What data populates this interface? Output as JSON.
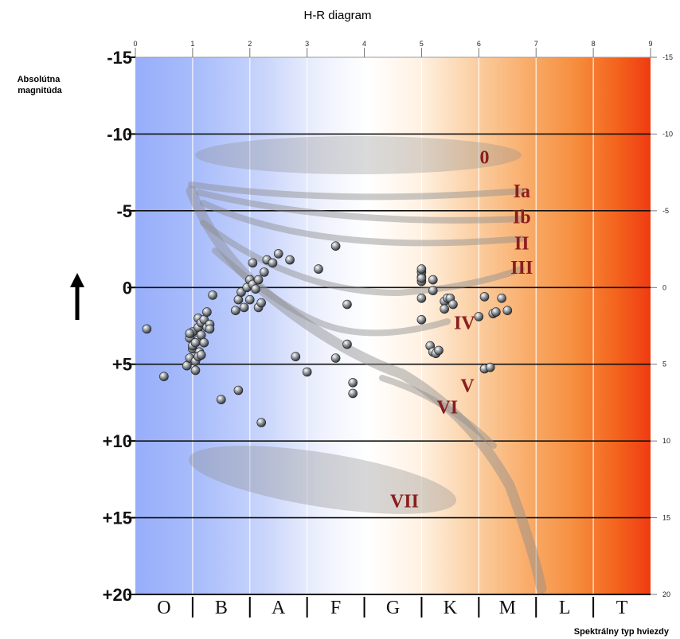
{
  "chart_data": {
    "type": "scatter",
    "title": "H-R diagram",
    "ylabel": [
      "Absolútna",
      "magnitúda"
    ],
    "xlabel": "Spektrálny typ hviezdy",
    "x_top_ticks": [
      "0",
      "1",
      "2",
      "3",
      "4",
      "5",
      "6",
      "7",
      "8",
      "9"
    ],
    "y_left_ticks": [
      {
        "v": -15,
        "label": "-15"
      },
      {
        "v": -10,
        "label": "-10"
      },
      {
        "v": -5,
        "label": "-5"
      },
      {
        "v": 0,
        "label": "0"
      },
      {
        "v": 5,
        "label": "+5"
      },
      {
        "v": 10,
        "label": "+10"
      },
      {
        "v": 15,
        "label": "+15"
      },
      {
        "v": 20,
        "label": "+20"
      }
    ],
    "y_right_ticks": [
      {
        "v": -15,
        "label": "-15"
      },
      {
        "v": -10,
        "label": "-10"
      },
      {
        "v": -5,
        "label": "-5"
      },
      {
        "v": 0,
        "label": "0"
      },
      {
        "v": 5,
        "label": "5"
      },
      {
        "v": 10,
        "label": "10"
      },
      {
        "v": 15,
        "label": "15"
      },
      {
        "v": 20,
        "label": "20"
      }
    ],
    "xlim": [
      0,
      9
    ],
    "ylim": [
      -15,
      20
    ],
    "spectral_classes": [
      "O",
      "B",
      "A",
      "F",
      "G",
      "K",
      "M",
      "L",
      "T"
    ],
    "luminosity_classes": [
      {
        "label": "0",
        "x": 6.1,
        "y": -8.5
      },
      {
        "label": "Ia",
        "x": 6.75,
        "y": -6.3
      },
      {
        "label": "Ib",
        "x": 6.75,
        "y": -4.6
      },
      {
        "label": "II",
        "x": 6.75,
        "y": -2.9
      },
      {
        "label": "III",
        "x": 6.75,
        "y": -1.3
      },
      {
        "label": "IV",
        "x": 5.75,
        "y": 2.3
      },
      {
        "label": "V",
        "x": 5.8,
        "y": 6.4
      },
      {
        "label": "VI",
        "x": 5.45,
        "y": 7.8
      },
      {
        "label": "VII",
        "x": 4.7,
        "y": 13.9
      }
    ],
    "stars_x": [
      0.2,
      0.5,
      0.9,
      0.95,
      0.95,
      1.0,
      1.0,
      1.05,
      1.05,
      1.1,
      1.1,
      1.1,
      1.12,
      1.15,
      1.15,
      1.2,
      1.2,
      1.25,
      1.25,
      1.3,
      1.35,
      1.1,
      1.0,
      0.95,
      1.05,
      1.15,
      1.3,
      1.75,
      1.8,
      1.85,
      1.9,
      1.95,
      2.0,
      2.0,
      2.05,
      2.05,
      2.1,
      2.15,
      2.15,
      2.2,
      2.25,
      2.3,
      2.4,
      2.5,
      2.7,
      3.2,
      3.5,
      1.5,
      1.8,
      2.2,
      2.8,
      3.0,
      3.5,
      3.7,
      3.8,
      3.8,
      3.7,
      5.0,
      5.0,
      5.0,
      5.0,
      5.0,
      5.0,
      5.0,
      5.2,
      5.15,
      5.2,
      5.25,
      5.3,
      5.4,
      5.4,
      5.45,
      5.5,
      5.55,
      5.2,
      6.0,
      6.1,
      6.2,
      6.1,
      6.25,
      6.4,
      6.5,
      6.3
    ],
    "stars_y": [
      2.7,
      5.8,
      5.1,
      4.6,
      3.3,
      4.0,
      2.9,
      5.4,
      4.8,
      3.4,
      2.6,
      2.0,
      4.2,
      3.1,
      2.3,
      3.6,
      2.1,
      2.6,
      1.6,
      2.4,
      0.5,
      4.5,
      3.8,
      3.0,
      3.6,
      4.4,
      2.7,
      1.5,
      0.8,
      0.3,
      1.3,
      0.0,
      0.8,
      -0.5,
      -0.2,
      -1.6,
      0.1,
      -0.5,
      1.3,
      1.0,
      -1.0,
      -1.8,
      -1.6,
      -2.2,
      -1.8,
      -1.2,
      -2.7,
      7.3,
      6.7,
      8.8,
      4.5,
      5.5,
      4.6,
      3.7,
      6.2,
      6.9,
      1.1,
      2.1,
      0.7,
      -0.4,
      -0.7,
      -1.0,
      -1.2,
      -0.6,
      0.2,
      3.8,
      4.2,
      4.3,
      4.1,
      0.9,
      1.4,
      0.7,
      0.7,
      1.1,
      -0.5,
      1.9,
      5.3,
      5.2,
      0.6,
      1.7,
      0.7,
      1.5,
      1.6
    ]
  }
}
